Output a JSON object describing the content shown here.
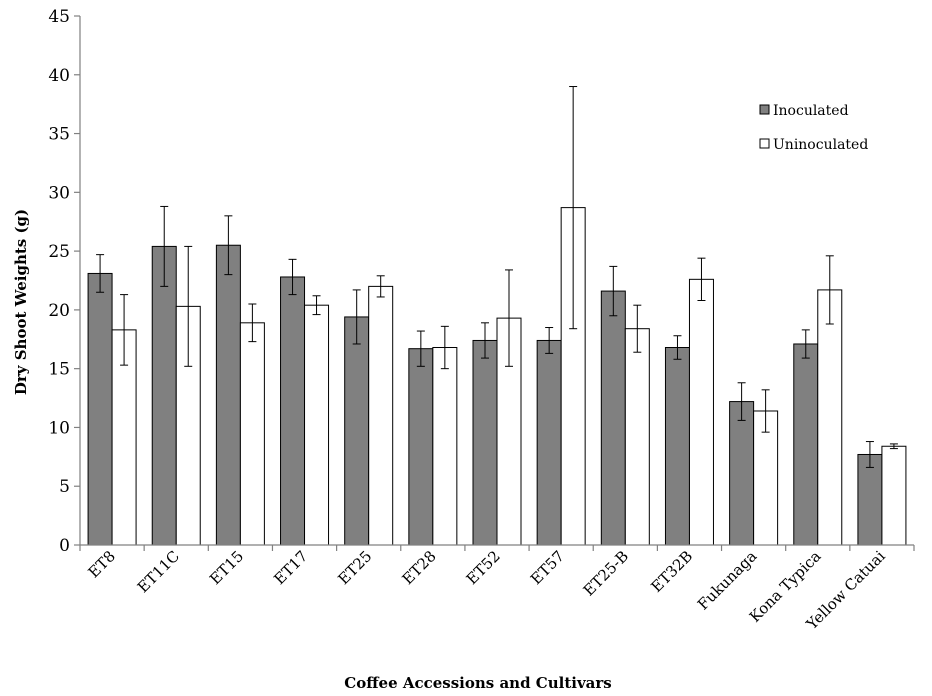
{
  "chart_data": {
    "type": "bar",
    "title": "",
    "xlabel": "Coffee Accessions and Cultivars",
    "ylabel": "Dry Shoot Weights (g)",
    "ylim": [
      0,
      45
    ],
    "yticks": [
      "0",
      "5",
      "10",
      "15",
      "20",
      "25",
      "30",
      "35",
      "40",
      "45"
    ],
    "grid": false,
    "legend_position": "top-right",
    "categories": [
      "ET8",
      "ET11C",
      "ET15",
      "ET17",
      "ET25",
      "ET28",
      "ET52",
      "ET57",
      "ET25-B",
      "ET32B",
      "Fukunaga",
      "Kona Typica",
      "Yellow Catuai"
    ],
    "series": [
      {
        "name": "Inoculated",
        "color": "#808080",
        "values": [
          23.1,
          25.4,
          25.5,
          22.8,
          19.4,
          16.7,
          17.4,
          17.4,
          21.6,
          16.8,
          12.2,
          17.1,
          7.7
        ],
        "error": [
          1.6,
          3.4,
          2.5,
          1.5,
          2.3,
          1.5,
          1.5,
          1.1,
          2.1,
          1.0,
          1.6,
          1.2,
          1.1
        ]
      },
      {
        "name": "Uninoculated",
        "color": "#ffffff",
        "values": [
          18.3,
          20.3,
          18.9,
          20.4,
          22.0,
          16.8,
          19.3,
          28.7,
          18.4,
          22.6,
          11.4,
          21.7,
          8.4
        ],
        "error": [
          3.0,
          5.1,
          1.6,
          0.8,
          0.9,
          1.8,
          4.1,
          10.3,
          2.0,
          1.8,
          1.8,
          2.9,
          0.2
        ]
      }
    ]
  }
}
